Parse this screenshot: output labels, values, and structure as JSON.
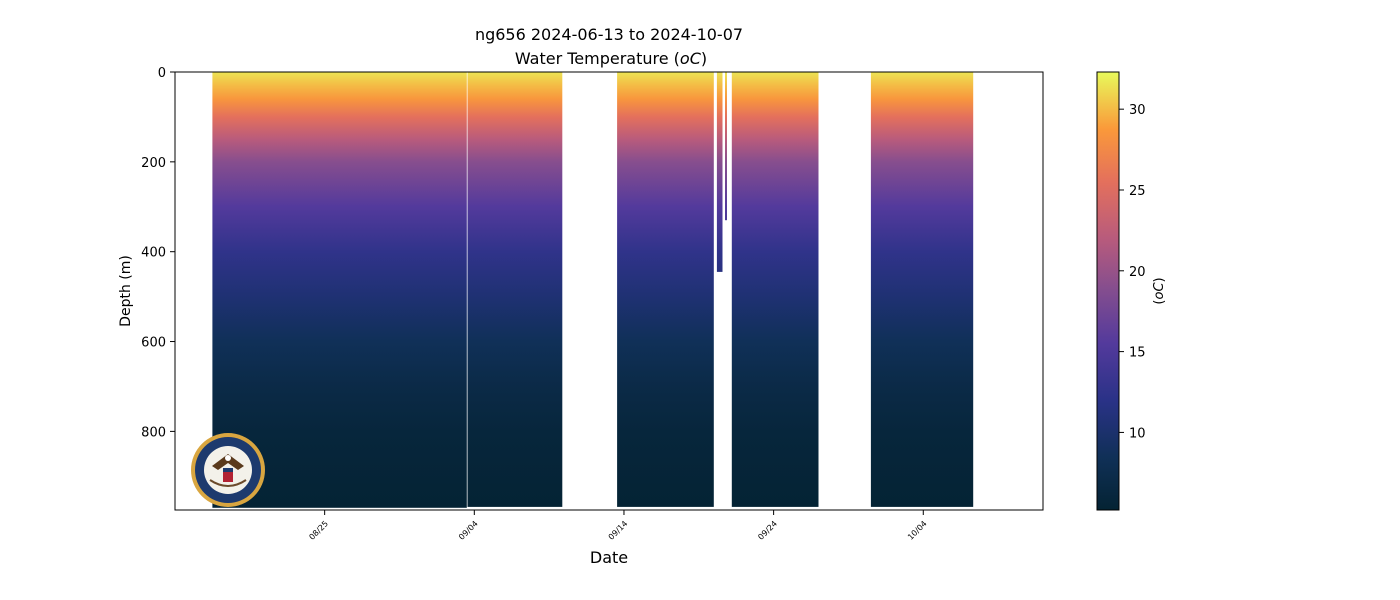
{
  "chart_data": {
    "type": "heatmap",
    "title": "ng656 2024-06-13 to 2024-10-07",
    "subtitle_prefix": "Water Temperature (",
    "subtitle_unit": "oC",
    "subtitle_suffix": ")",
    "xlabel": "Date",
    "ylabel": "Depth (m)",
    "colorbar_label_prefix": "(",
    "colorbar_label_unit": "oC",
    "colorbar_label_suffix": ")",
    "y_axis": {
      "range": [
        975,
        0
      ],
      "inverted": true,
      "ticks": [
        0,
        200,
        400,
        600,
        800
      ]
    },
    "x_axis": {
      "range": [
        "2024-08-15",
        "2024-10-12"
      ],
      "ticks": [
        {
          "date": "2024-08-25",
          "label": "08/25"
        },
        {
          "date": "2024-09-04",
          "label": "09/04"
        },
        {
          "date": "2024-09-14",
          "label": "09/14"
        },
        {
          "date": "2024-09-24",
          "label": "09/24"
        },
        {
          "date": "2024-10-04",
          "label": "10/04"
        }
      ]
    },
    "colorbar": {
      "range": [
        5.2,
        32.3
      ],
      "ticks": [
        10,
        15,
        20,
        25,
        30
      ],
      "colormap": "thermal"
    },
    "segments": [
      {
        "start": "2024-08-17T12:00",
        "end": "2024-09-03T12:00",
        "max_depth": 970
      },
      {
        "start": "2024-09-03T13:00",
        "end": "2024-09-09T21:00",
        "max_depth": 968
      },
      {
        "start": "2024-09-13T13:00",
        "end": "2024-09-20T00:00",
        "max_depth": 968
      },
      {
        "start": "2024-09-20T05:00",
        "end": "2024-09-20T14:00",
        "max_depth": 445
      },
      {
        "start": "2024-09-20T18:00",
        "end": "2024-09-20T21:00",
        "max_depth": 330
      },
      {
        "start": "2024-09-21T05:00",
        "end": "2024-09-27T00:00",
        "max_depth": 968
      },
      {
        "start": "2024-09-30T12:00",
        "end": "2024-10-07T08:00",
        "max_depth": 968
      }
    ],
    "temperature_profile": [
      {
        "depth": 0,
        "temp": 31.5
      },
      {
        "depth": 30,
        "temp": 30.0
      },
      {
        "depth": 60,
        "temp": 28.5
      },
      {
        "depth": 100,
        "temp": 25.5
      },
      {
        "depth": 150,
        "temp": 22.0
      },
      {
        "depth": 200,
        "temp": 19.0
      },
      {
        "depth": 300,
        "temp": 15.5
      },
      {
        "depth": 400,
        "temp": 12.5
      },
      {
        "depth": 500,
        "temp": 10.5
      },
      {
        "depth": 600,
        "temp": 8.5
      },
      {
        "depth": 700,
        "temp": 7.0
      },
      {
        "depth": 800,
        "temp": 6.0
      },
      {
        "depth": 975,
        "temp": 5.3
      }
    ],
    "logo": "us-navy-seal-logo"
  }
}
